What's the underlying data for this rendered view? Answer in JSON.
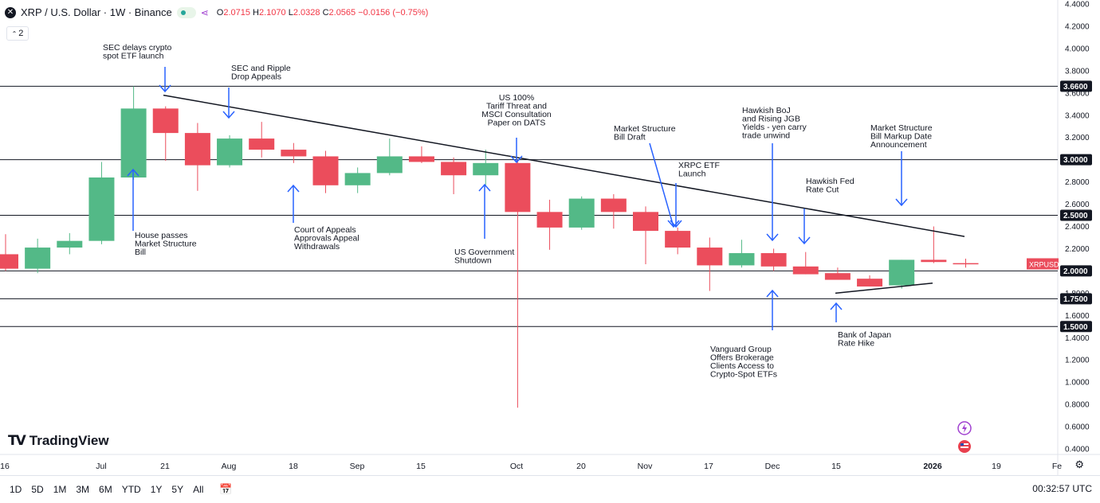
{
  "header": {
    "symbol_icon": "x-icon",
    "title": "XRP / U.S. Dollar · 1W · Binance",
    "open_label": "O",
    "open": "2.0715",
    "high_label": "H",
    "high": "2.1070",
    "low_label": "L",
    "low": "2.0328",
    "close_label": "C",
    "close": "2.0565",
    "change": "−0.0156 (−0.75%)"
  },
  "indicators": {
    "count": "2"
  },
  "logo": {
    "text": "TradingView"
  },
  "timeframes": [
    "1D",
    "5D",
    "1M",
    "3M",
    "6M",
    "YTD",
    "1Y",
    "5Y",
    "All"
  ],
  "clock": "00:32:57 UTC",
  "colors": {
    "up": "#53b987",
    "down": "#eb4d5c",
    "annotation": "#2962ff",
    "axis_text": "#131722"
  },
  "chart_data": {
    "type": "candlestick",
    "title": "XRP / U.S. Dollar · 1W · Binance",
    "ylim": [
      0.3,
      4.4
    ],
    "y_ticks": [
      "4.4000",
      "4.2000",
      "4.0000",
      "3.8000",
      "3.6000",
      "3.4000",
      "3.2000",
      "3.0000",
      "2.8000",
      "2.6000",
      "2.4000",
      "2.2000",
      "2.0000",
      "1.8000",
      "1.6000",
      "1.4000",
      "1.2000",
      "1.0000",
      "0.8000",
      "0.6000",
      "0.4000"
    ],
    "x_ticks": [
      "16",
      "Jul",
      "21",
      "Aug",
      "18",
      "Sep",
      "15",
      "Oct",
      "20",
      "Nov",
      "17",
      "Dec",
      "15",
      "2026",
      "19",
      "Fe"
    ],
    "candles": [
      {
        "o": 2.15,
        "h": 2.33,
        "l": 2.0,
        "c": 2.02
      },
      {
        "o": 2.02,
        "h": 2.29,
        "l": 1.98,
        "c": 2.21
      },
      {
        "o": 2.21,
        "h": 2.34,
        "l": 2.15,
        "c": 2.27
      },
      {
        "o": 2.27,
        "h": 2.98,
        "l": 2.24,
        "c": 2.84
      },
      {
        "o": 2.84,
        "h": 3.66,
        "l": 2.82,
        "c": 3.46
      },
      {
        "o": 3.46,
        "h": 3.48,
        "l": 2.99,
        "c": 3.24
      },
      {
        "o": 3.24,
        "h": 3.33,
        "l": 2.72,
        "c": 2.95
      },
      {
        "o": 2.95,
        "h": 3.22,
        "l": 2.93,
        "c": 3.19
      },
      {
        "o": 3.19,
        "h": 3.34,
        "l": 3.02,
        "c": 3.09
      },
      {
        "o": 3.09,
        "h": 3.15,
        "l": 2.97,
        "c": 3.03
      },
      {
        "o": 3.03,
        "h": 3.08,
        "l": 2.7,
        "c": 2.77
      },
      {
        "o": 2.77,
        "h": 2.93,
        "l": 2.7,
        "c": 2.88
      },
      {
        "o": 2.88,
        "h": 3.19,
        "l": 2.86,
        "c": 3.03
      },
      {
        "o": 3.03,
        "h": 3.12,
        "l": 2.97,
        "c": 2.98
      },
      {
        "o": 2.98,
        "h": 3.02,
        "l": 2.69,
        "c": 2.86
      },
      {
        "o": 2.86,
        "h": 3.09,
        "l": 2.77,
        "c": 2.97
      },
      {
        "o": 2.97,
        "h": 3.0,
        "l": 0.77,
        "c": 2.53
      },
      {
        "o": 2.53,
        "h": 2.64,
        "l": 2.19,
        "c": 2.39
      },
      {
        "o": 2.39,
        "h": 2.67,
        "l": 2.37,
        "c": 2.65
      },
      {
        "o": 2.65,
        "h": 2.69,
        "l": 2.38,
        "c": 2.53
      },
      {
        "o": 2.53,
        "h": 2.58,
        "l": 2.06,
        "c": 2.36
      },
      {
        "o": 2.36,
        "h": 2.39,
        "l": 2.15,
        "c": 2.21
      },
      {
        "o": 2.21,
        "h": 2.3,
        "l": 1.82,
        "c": 2.05
      },
      {
        "o": 2.05,
        "h": 2.28,
        "l": 2.03,
        "c": 2.16
      },
      {
        "o": 2.16,
        "h": 2.2,
        "l": 2.0,
        "c": 2.04
      },
      {
        "o": 2.04,
        "h": 2.17,
        "l": 1.97,
        "c": 1.97
      },
      {
        "o": 1.98,
        "h": 2.03,
        "l": 1.94,
        "c": 1.92
      },
      {
        "o": 1.93,
        "h": 1.96,
        "l": 1.86,
        "c": 1.86
      },
      {
        "o": 1.87,
        "h": 2.1,
        "l": 1.84,
        "c": 2.1
      },
      {
        "o": 2.1,
        "h": 2.4,
        "l": 2.07,
        "c": 2.08
      },
      {
        "o": 2.07,
        "h": 2.11,
        "l": 2.03,
        "c": 2.06
      }
    ],
    "horizontal_levels": [
      {
        "value": 3.66,
        "label": "3.6600"
      },
      {
        "value": 3.0,
        "label": "3.0000"
      },
      {
        "value": 2.5,
        "label": "2.5000"
      },
      {
        "value": 2.0,
        "label": "2.0000"
      },
      {
        "value": 1.75,
        "label": "1.7500"
      },
      {
        "value": 1.5,
        "label": "1.5000"
      }
    ],
    "last_price": {
      "value": 2.0565,
      "label": "XRPUSD"
    },
    "annotations": [
      {
        "text": "SEC delays crypto\nspot ETF launch"
      },
      {
        "text": "SEC and Ripple\nDrop Appeals"
      },
      {
        "text": "US 100%\nTariff Threat and\nMSCI Consultation\nPaper on DATS"
      },
      {
        "text": "Market Structure\nBill Draft"
      },
      {
        "text": "XRPC ETF\nLaunch"
      },
      {
        "text": "Hawkish BoJ\nand Rising JGB\nYields - yen carry\ntrade unwind"
      },
      {
        "text": "Market Structure\nBill Markup Date\nAnnouncement"
      },
      {
        "text": "Hawkish Fed\nRate Cut"
      },
      {
        "text": "House passes\nMarket Structure\nBill"
      },
      {
        "text": "Court of Appeals\nApprovals Appeal\nWithdrawals"
      },
      {
        "text": "US Government\nShutdown"
      },
      {
        "text": "Vanguard Group\nOffers Brokerage\nClients Access to\nCrypto-Spot ETFs"
      },
      {
        "text": "Bank of Japan\nRate Hike"
      }
    ]
  }
}
